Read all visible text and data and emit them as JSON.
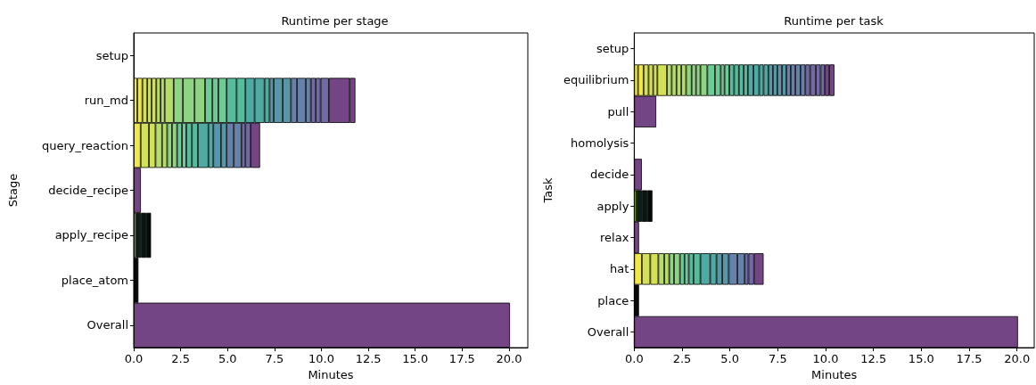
{
  "chart_data": [
    {
      "type": "bar",
      "orientation": "horizontal",
      "stacked": true,
      "title": "Runtime per stage",
      "xlabel": "Minutes",
      "ylabel": "Stage",
      "grid": false,
      "categories": [
        "setup",
        "run_md",
        "query_reaction",
        "decide_recipe",
        "apply_recipe",
        "place_atom",
        "Overall"
      ],
      "xlim": [
        0,
        21.0
      ],
      "xticks": [
        {
          "value": 0,
          "label": "0.0"
        },
        {
          "value": 2.5,
          "label": "2.5"
        },
        {
          "value": 5,
          "label": "5.0"
        },
        {
          "value": 7.5,
          "label": "7.5"
        },
        {
          "value": 10,
          "label": "10.0"
        },
        {
          "value": 12.5,
          "label": "12.5"
        },
        {
          "value": 15,
          "label": "15.0"
        },
        {
          "value": 17.5,
          "label": "17.5"
        },
        {
          "value": 20,
          "label": "20.0"
        }
      ],
      "series": [
        {
          "values": [
            null,
            0.19,
            0.37,
            0.38,
            0.12,
            0.25,
            20.05
          ],
          "colors": [
            null,
            "#efe845",
            "#efe845",
            "#744584",
            "#7cb82f",
            "#0a0a0a",
            "#744584"
          ]
        },
        {
          "values": [
            null,
            0.27,
            0.44,
            null,
            0.27,
            null,
            null
          ],
          "colors": [
            null,
            "#efe845",
            "#d4e157",
            null,
            "#0b1f17",
            null,
            null
          ]
        },
        {
          "values": [
            null,
            0.26,
            0.35,
            null,
            0.27,
            null,
            null
          ],
          "colors": [
            null,
            "#d4e157",
            "#d4e157",
            null,
            "#0a1410",
            null,
            null
          ]
        },
        {
          "values": [
            null,
            0.23,
            0.35,
            null,
            0.26,
            null,
            null
          ],
          "colors": [
            null,
            "#d4e157",
            "#b5dd6a",
            null,
            "#070a0c",
            null,
            null
          ]
        },
        {
          "values": [
            null,
            0.25,
            0.27,
            null,
            null,
            null,
            null
          ],
          "colors": [
            null,
            "#d4e157",
            "#b5dd6a",
            null,
            null,
            null,
            null
          ]
        },
        {
          "values": [
            null,
            0.23,
            0.26,
            null,
            null,
            null,
            null
          ],
          "colors": [
            null,
            "#b5dd6a",
            "#8fd483",
            null,
            null,
            null,
            null
          ]
        },
        {
          "values": [
            null,
            0.22,
            0.27,
            null,
            null,
            null,
            null
          ],
          "colors": [
            null,
            "#b5dd6a",
            "#8fd483",
            null,
            null,
            null,
            null
          ]
        },
        {
          "values": [
            null,
            0.48,
            0.26,
            null,
            null,
            null,
            null
          ],
          "colors": [
            null,
            "#b5dd6a",
            "#6fcb95",
            null,
            null,
            null,
            null
          ]
        },
        {
          "values": [
            null,
            0.49,
            0.23,
            null,
            null,
            null,
            null
          ],
          "colors": [
            null,
            "#8fd483",
            "#6fcb95",
            null,
            null,
            null,
            null
          ]
        },
        {
          "values": [
            null,
            0.62,
            0.3,
            null,
            null,
            null,
            null
          ],
          "colors": [
            null,
            "#8fd483",
            "#55bd9c",
            null,
            null,
            null,
            null
          ]
        },
        {
          "values": [
            null,
            0.56,
            0.32,
            null,
            null,
            null,
            null
          ],
          "colors": [
            null,
            "#8fd483",
            "#55bd9c",
            null,
            null,
            null,
            null
          ]
        },
        {
          "values": [
            null,
            0.39,
            0.56,
            null,
            null,
            null,
            null
          ],
          "colors": [
            null,
            "#6fcb95",
            "#4eaaa3",
            null,
            null,
            null,
            null
          ]
        },
        {
          "values": [
            null,
            0.32,
            0.26,
            null,
            null,
            null,
            null
          ],
          "colors": [
            null,
            "#6fcb95",
            "#4eaaa3",
            null,
            null,
            null,
            null
          ]
        },
        {
          "values": [
            null,
            0.44,
            0.41,
            null,
            null,
            null,
            null
          ],
          "colors": [
            null,
            "#6fcb95",
            "#5897a7",
            null,
            null,
            null,
            null
          ]
        },
        {
          "values": [
            null,
            0.53,
            0.3,
            null,
            null,
            null,
            null
          ],
          "colors": [
            null,
            "#55bd9c",
            "#5897a7",
            null,
            null,
            null,
            null
          ]
        },
        {
          "values": [
            null,
            0.47,
            0.38,
            null,
            null,
            null,
            null
          ],
          "colors": [
            null,
            "#55bd9c",
            "#6682ab",
            null,
            null,
            null,
            null
          ]
        },
        {
          "values": [
            null,
            0.49,
            0.41,
            null,
            null,
            null,
            null
          ],
          "colors": [
            null,
            "#4eaaa3",
            "#6682ab",
            null,
            null,
            null,
            null
          ]
        },
        {
          "values": [
            null,
            0.53,
            0.21,
            null,
            null,
            null,
            null
          ],
          "colors": [
            null,
            "#4eaaa3",
            "#726aa5",
            null,
            null,
            null,
            null
          ]
        },
        {
          "values": [
            null,
            0.27,
            0.28,
            null,
            null,
            null,
            null
          ],
          "colors": [
            null,
            "#4eaaa3",
            "#726aa5",
            null,
            null,
            null,
            null
          ]
        },
        {
          "values": [
            null,
            0.22,
            0.5,
            null,
            null,
            null,
            null
          ],
          "colors": [
            null,
            "#5897a7",
            "#744584",
            null,
            null,
            null,
            null
          ]
        },
        {
          "values": [
            null,
            0.48,
            null,
            null,
            null,
            null,
            null
          ],
          "colors": [
            null,
            "#5897a7",
            null,
            null,
            null,
            null,
            null
          ]
        },
        {
          "values": [
            null,
            0.44,
            null,
            null,
            null,
            null,
            null
          ],
          "colors": [
            null,
            "#5897a7",
            null,
            null,
            null,
            null,
            null
          ]
        },
        {
          "values": [
            null,
            0.32,
            null,
            null,
            null,
            null,
            null
          ],
          "colors": [
            null,
            "#6682ab",
            null,
            null,
            null,
            null,
            null
          ]
        },
        {
          "values": [
            null,
            0.47,
            null,
            null,
            null,
            null,
            null
          ],
          "colors": [
            null,
            "#6682ab",
            null,
            null,
            null,
            null,
            null
          ]
        },
        {
          "values": [
            null,
            0.27,
            null,
            null,
            null,
            null,
            null
          ],
          "colors": [
            null,
            "#6682ab",
            null,
            null,
            null,
            null,
            null
          ]
        },
        {
          "values": [
            null,
            0.26,
            null,
            null,
            null,
            null,
            null
          ],
          "colors": [
            null,
            "#726aa5",
            null,
            null,
            null,
            null,
            null
          ]
        },
        {
          "values": [
            null,
            0.26,
            null,
            null,
            null,
            null,
            null
          ],
          "colors": [
            null,
            "#726aa5",
            null,
            null,
            null,
            null,
            null
          ]
        },
        {
          "values": [
            null,
            0.44,
            null,
            null,
            null,
            null,
            null
          ],
          "colors": [
            null,
            "#726aa5",
            null,
            null,
            null,
            null,
            null
          ]
        },
        {
          "values": [
            null,
            1.11,
            null,
            null,
            null,
            null,
            null
          ],
          "colors": [
            null,
            "#744584",
            null,
            null,
            null,
            null,
            null
          ]
        },
        {
          "values": [
            null,
            0.3,
            null,
            null,
            null,
            null,
            null
          ],
          "colors": [
            null,
            "#744584",
            null,
            null,
            null,
            null,
            null
          ]
        }
      ]
    },
    {
      "type": "bar",
      "orientation": "horizontal",
      "stacked": true,
      "title": "Runtime per task",
      "xlabel": "Minutes",
      "ylabel": "Task",
      "grid": false,
      "categories": [
        "setup",
        "equilibrium",
        "pull",
        "homolysis",
        "decide",
        "apply",
        "relax",
        "hat",
        "place",
        "Overall"
      ],
      "xlim": [
        0,
        20.9
      ],
      "xticks": [
        {
          "value": 0,
          "label": "0.0"
        },
        {
          "value": 2.5,
          "label": "2.5"
        },
        {
          "value": 5,
          "label": "5.0"
        },
        {
          "value": 7.5,
          "label": "7.5"
        },
        {
          "value": 10,
          "label": "10.0"
        },
        {
          "value": 12.5,
          "label": "12.5"
        },
        {
          "value": 15,
          "label": "15.0"
        },
        {
          "value": 17.5,
          "label": "17.5"
        },
        {
          "value": 20,
          "label": "20.0"
        }
      ],
      "series": [
        {
          "values": [
            null,
            0.2,
            1.15,
            null,
            0.4,
            0.12,
            0.25,
            0.4,
            0.25,
            20.05
          ],
          "colors": [
            null,
            "#efe845",
            "#744584",
            null,
            "#744584",
            "#7cb82f",
            "#744584",
            "#efe845",
            "#0a0a0a",
            "#744584"
          ]
        },
        {
          "values": [
            null,
            0.29,
            null,
            null,
            null,
            0.28,
            null,
            0.44,
            null,
            null
          ],
          "colors": [
            null,
            "#efe845",
            null,
            null,
            null,
            "#0b1f17",
            null,
            "#d4e157",
            null,
            null
          ]
        },
        {
          "values": [
            null,
            0.26,
            null,
            null,
            null,
            0.28,
            null,
            0.42,
            null,
            null
          ],
          "colors": [
            null,
            "#d4e157",
            null,
            null,
            null,
            "#0a1410",
            null,
            "#d4e157",
            null,
            null
          ]
        },
        {
          "values": [
            null,
            0.24,
            null,
            null,
            null,
            0.27,
            null,
            0.31,
            null,
            null
          ],
          "colors": [
            null,
            "#d4e157",
            null,
            null,
            null,
            "#070a0c",
            null,
            "#b5dd6a",
            null,
            null
          ]
        },
        {
          "values": [
            null,
            0.22,
            null,
            null,
            null,
            null,
            null,
            0.26,
            null,
            null
          ],
          "colors": [
            null,
            "#d4e157",
            null,
            null,
            null,
            null,
            null,
            "#b5dd6a",
            null,
            null
          ]
        },
        {
          "values": [
            null,
            0.5,
            null,
            null,
            null,
            null,
            null,
            0.25,
            null,
            null
          ],
          "colors": [
            null,
            "#d4e157",
            null,
            null,
            null,
            null,
            null,
            "#8fd483",
            null,
            null
          ]
        },
        {
          "values": [
            null,
            0.25,
            null,
            null,
            null,
            null,
            null,
            0.31,
            null,
            null
          ],
          "colors": [
            null,
            "#b5dd6a",
            null,
            null,
            null,
            null,
            null,
            "#8fd483",
            null,
            null
          ]
        },
        {
          "values": [
            null,
            0.25,
            null,
            null,
            null,
            null,
            null,
            0.24,
            null,
            null
          ],
          "colors": [
            null,
            "#b5dd6a",
            null,
            null,
            null,
            null,
            null,
            "#6fcb95",
            null,
            null
          ]
        },
        {
          "values": [
            null,
            0.25,
            null,
            null,
            null,
            null,
            null,
            0.22,
            null,
            null
          ],
          "colors": [
            null,
            "#b5dd6a",
            null,
            null,
            null,
            null,
            null,
            "#6fcb95",
            null,
            null
          ]
        },
        {
          "values": [
            null,
            0.25,
            null,
            null,
            null,
            null,
            null,
            0.25,
            null,
            null
          ],
          "colors": [
            null,
            "#b5dd6a",
            null,
            null,
            null,
            null,
            null,
            "#55bd9c",
            null,
            null
          ]
        },
        {
          "values": [
            null,
            0.29,
            null,
            null,
            null,
            null,
            null,
            0.36,
            null,
            null
          ],
          "colors": [
            null,
            "#8fd483",
            null,
            null,
            null,
            null,
            null,
            "#55bd9c",
            null,
            null
          ]
        },
        {
          "values": [
            null,
            0.23,
            null,
            null,
            null,
            null,
            null,
            0.51,
            null,
            null
          ],
          "colors": [
            null,
            "#8fd483",
            null,
            null,
            null,
            null,
            null,
            "#4eaaa3",
            null,
            null
          ]
        },
        {
          "values": [
            null,
            0.23,
            null,
            null,
            null,
            null,
            null,
            0.33,
            null,
            null
          ],
          "colors": [
            null,
            "#8fd483",
            null,
            null,
            null,
            null,
            null,
            "#4eaaa3",
            null,
            null
          ]
        },
        {
          "values": [
            null,
            0.36,
            null,
            null,
            null,
            null,
            null,
            0.3,
            null,
            null
          ],
          "colors": [
            null,
            "#8fd483",
            null,
            null,
            null,
            null,
            null,
            "#5897a7",
            null,
            null
          ]
        },
        {
          "values": [
            null,
            0.4,
            null,
            null,
            null,
            null,
            null,
            0.34,
            null,
            null
          ],
          "colors": [
            null,
            "#6fcb95",
            null,
            null,
            null,
            null,
            null,
            "#5897a7",
            null,
            null
          ]
        },
        {
          "values": [
            null,
            0.3,
            null,
            null,
            null,
            null,
            null,
            0.45,
            null,
            null
          ],
          "colors": [
            null,
            "#6fcb95",
            null,
            null,
            null,
            null,
            null,
            "#6682ab",
            null,
            null
          ]
        },
        {
          "values": [
            null,
            0.2,
            null,
            null,
            null,
            null,
            null,
            0.38,
            null,
            null
          ],
          "colors": [
            null,
            "#6fcb95",
            null,
            null,
            null,
            null,
            null,
            "#6682ab",
            null,
            null
          ]
        },
        {
          "values": [
            null,
            0.25,
            null,
            null,
            null,
            null,
            null,
            0.2,
            null,
            null
          ],
          "colors": [
            null,
            "#6fcb95",
            null,
            null,
            null,
            null,
            null,
            "#726aa5",
            null,
            null
          ]
        },
        {
          "values": [
            null,
            0.25,
            null,
            null,
            null,
            null,
            null,
            0.29,
            null,
            null
          ],
          "colors": [
            null,
            "#55bd9c",
            null,
            null,
            null,
            null,
            null,
            "#726aa5",
            null,
            null
          ]
        },
        {
          "values": [
            null,
            0.25,
            null,
            null,
            null,
            null,
            null,
            0.5,
            null,
            null
          ],
          "colors": [
            null,
            "#55bd9c",
            null,
            null,
            null,
            null,
            null,
            "#744584",
            null,
            null
          ]
        },
        {
          "values": [
            null,
            0.25,
            null,
            null,
            null,
            null,
            null,
            null,
            null,
            null
          ],
          "colors": [
            null,
            "#55bd9c",
            null,
            null,
            null,
            null,
            null,
            null,
            null,
            null
          ]
        },
        {
          "values": [
            null,
            0.22,
            null,
            null,
            null,
            null,
            null,
            null,
            null,
            null
          ],
          "colors": [
            null,
            "#55bd9c",
            null,
            null,
            null,
            null,
            null,
            null,
            null,
            null
          ]
        },
        {
          "values": [
            null,
            0.29,
            null,
            null,
            null,
            null,
            null,
            null,
            null,
            null
          ],
          "colors": [
            null,
            "#4eaaa3",
            null,
            null,
            null,
            null,
            null,
            null,
            null,
            null
          ]
        },
        {
          "values": [
            null,
            0.3,
            null,
            null,
            null,
            null,
            null,
            null,
            null,
            null
          ],
          "colors": [
            null,
            "#4eaaa3",
            null,
            null,
            null,
            null,
            null,
            null,
            null,
            null
          ]
        },
        {
          "values": [
            null,
            0.23,
            null,
            null,
            null,
            null,
            null,
            null,
            null,
            null
          ],
          "colors": [
            null,
            "#4eaaa3",
            null,
            null,
            null,
            null,
            null,
            null,
            null,
            null
          ]
        },
        {
          "values": [
            null,
            0.25,
            null,
            null,
            null,
            null,
            null,
            null,
            null,
            null
          ],
          "colors": [
            null,
            "#4eaaa3",
            null,
            null,
            null,
            null,
            null,
            null,
            null,
            null
          ]
        },
        {
          "values": [
            null,
            0.24,
            null,
            null,
            null,
            null,
            null,
            null,
            null,
            null
          ],
          "colors": [
            null,
            "#5897a7",
            null,
            null,
            null,
            null,
            null,
            null,
            null,
            null
          ]
        },
        {
          "values": [
            null,
            0.23,
            null,
            null,
            null,
            null,
            null,
            null,
            null,
            null
          ],
          "colors": [
            null,
            "#5897a7",
            null,
            null,
            null,
            null,
            null,
            null,
            null,
            null
          ]
        },
        {
          "values": [
            null,
            0.24,
            null,
            null,
            null,
            null,
            null,
            null,
            null,
            null
          ],
          "colors": [
            null,
            "#5897a7",
            null,
            null,
            null,
            null,
            null,
            null,
            null,
            null
          ]
        },
        {
          "values": [
            null,
            0.23,
            null,
            null,
            null,
            null,
            null,
            null,
            null,
            null
          ],
          "colors": [
            null,
            "#5897a7",
            null,
            null,
            null,
            null,
            null,
            null,
            null,
            null
          ]
        },
        {
          "values": [
            null,
            0.23,
            null,
            null,
            null,
            null,
            null,
            null,
            null,
            null
          ],
          "colors": [
            null,
            "#6682ab",
            null,
            null,
            null,
            null,
            null,
            null,
            null,
            null
          ]
        },
        {
          "values": [
            null,
            0.24,
            null,
            null,
            null,
            null,
            null,
            null,
            null,
            null
          ],
          "colors": [
            null,
            "#6682ab",
            null,
            null,
            null,
            null,
            null,
            null,
            null,
            null
          ]
        },
        {
          "values": [
            null,
            0.27,
            null,
            null,
            null,
            null,
            null,
            null,
            null,
            null
          ],
          "colors": [
            null,
            "#6682ab",
            null,
            null,
            null,
            null,
            null,
            null,
            null,
            null
          ]
        },
        {
          "values": [
            null,
            0.25,
            null,
            null,
            null,
            null,
            null,
            null,
            null,
            null
          ],
          "colors": [
            null,
            "#6682ab",
            null,
            null,
            null,
            null,
            null,
            null,
            null,
            null
          ]
        },
        {
          "values": [
            null,
            0.25,
            null,
            null,
            null,
            null,
            null,
            null,
            null,
            null
          ],
          "colors": [
            null,
            "#726aa5",
            null,
            null,
            null,
            null,
            null,
            null,
            null,
            null
          ]
        },
        {
          "values": [
            null,
            0.3,
            null,
            null,
            null,
            null,
            null,
            null,
            null,
            null
          ],
          "colors": [
            null,
            "#726aa5",
            null,
            null,
            null,
            null,
            null,
            null,
            null,
            null
          ]
        },
        {
          "values": [
            null,
            0.25,
            null,
            null,
            null,
            null,
            null,
            null,
            null,
            null
          ],
          "colors": [
            null,
            "#726aa5",
            null,
            null,
            null,
            null,
            null,
            null,
            null,
            null
          ]
        },
        {
          "values": [
            null,
            0.22,
            null,
            null,
            null,
            null,
            null,
            null,
            null,
            null
          ],
          "colors": [
            null,
            "#726aa5",
            null,
            null,
            null,
            null,
            null,
            null,
            null,
            null
          ]
        },
        {
          "values": [
            null,
            0.23,
            null,
            null,
            null,
            null,
            null,
            null,
            null,
            null
          ],
          "colors": [
            null,
            "#744584",
            null,
            null,
            null,
            null,
            null,
            null,
            null,
            null
          ]
        },
        {
          "values": [
            null,
            0.27,
            null,
            null,
            null,
            null,
            null,
            null,
            null,
            null
          ],
          "colors": [
            null,
            "#744584",
            null,
            null,
            null,
            null,
            null,
            null,
            null,
            null
          ]
        }
      ]
    }
  ]
}
